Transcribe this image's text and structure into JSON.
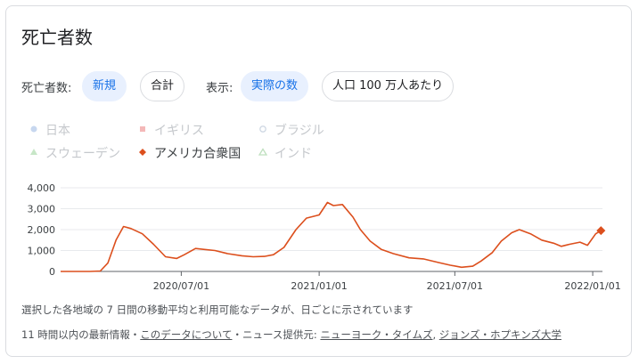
{
  "card": {
    "title": "死亡者数"
  },
  "controls": {
    "metric_label": "死亡者数:",
    "metric_options": [
      {
        "label": "新規",
        "selected": true
      },
      {
        "label": "合計",
        "selected": false
      }
    ],
    "display_label": "表示:",
    "display_options": [
      {
        "label": "実際の数",
        "selected": true
      },
      {
        "label": "人口 100 万人あたり",
        "selected": false
      }
    ]
  },
  "legend": [
    {
      "label": "日本",
      "marker": "circle-filled",
      "color": "#c7d7ef",
      "active": false
    },
    {
      "label": "イギリス",
      "marker": "square",
      "color": "#f4b8b8",
      "active": false
    },
    {
      "label": "ブラジル",
      "marker": "circle-outline",
      "color": "#cfd8e3",
      "active": false
    },
    {
      "label": "スウェーデン",
      "marker": "triangle",
      "color": "#c7e6c7",
      "active": false
    },
    {
      "label": "アメリカ合衆国",
      "marker": "diamond",
      "color": "#dc4f1d",
      "active": true
    },
    {
      "label": "インド",
      "marker": "triangle-outline",
      "color": "#bfe0bf",
      "active": false
    }
  ],
  "chart_data": {
    "type": "line",
    "series": [
      {
        "name": "アメリカ合衆国",
        "color": "#dc4f1d",
        "x": [
          "2020-01-22",
          "2020-03-01",
          "2020-03-15",
          "2020-03-25",
          "2020-04-05",
          "2020-04-15",
          "2020-04-25",
          "2020-05-10",
          "2020-05-25",
          "2020-06-10",
          "2020-06-25",
          "2020-07-05",
          "2020-07-20",
          "2020-08-01",
          "2020-08-15",
          "2020-09-01",
          "2020-09-20",
          "2020-10-05",
          "2020-10-20",
          "2020-11-01",
          "2020-11-15",
          "2020-12-01",
          "2020-12-15",
          "2021-01-01",
          "2021-01-12",
          "2021-01-20",
          "2021-02-01",
          "2021-02-15",
          "2021-02-25",
          "2021-03-10",
          "2021-03-25",
          "2021-04-10",
          "2021-05-01",
          "2021-05-20",
          "2021-06-10",
          "2021-06-25",
          "2021-07-10",
          "2021-07-25",
          "2021-08-05",
          "2021-08-20",
          "2021-09-01",
          "2021-09-15",
          "2021-09-25",
          "2021-10-10",
          "2021-10-25",
          "2021-11-10",
          "2021-11-20",
          "2021-12-01",
          "2021-12-15",
          "2021-12-25",
          "2022-01-05",
          "2022-01-12"
        ],
        "y": [
          0,
          0,
          20,
          400,
          1500,
          2150,
          2050,
          1800,
          1300,
          700,
          620,
          800,
          1100,
          1050,
          1000,
          850,
          750,
          700,
          720,
          800,
          1150,
          2000,
          2550,
          2700,
          3300,
          3150,
          3200,
          2600,
          2000,
          1450,
          1050,
          850,
          650,
          600,
          420,
          300,
          200,
          250,
          500,
          900,
          1450,
          1850,
          2000,
          1800,
          1500,
          1350,
          1200,
          1300,
          1400,
          1250,
          1800,
          1950
        ]
      }
    ],
    "x_ticks": [
      "2020/07/01",
      "2021/01/01",
      "2021/07/01",
      "2022/01/01"
    ],
    "y_ticks": [
      "0",
      "1,000",
      "2,000",
      "3,000",
      "4,000"
    ],
    "ylim": [
      0,
      4000
    ],
    "grid": "horizontal"
  },
  "footer": {
    "note": "選択した各地域の 7 日間の移動平均と利用可能なデータが、日ごとに示されています",
    "source_prefix": "11 時間以内の最新情報・",
    "about_link": "このデータについて",
    "source_mid": "・ニュース提供元: ",
    "source_link_1": "ニューヨーク・タイムズ",
    "source_sep": ", ",
    "source_link_2": "ジョンズ・ホプキンズ大学"
  }
}
